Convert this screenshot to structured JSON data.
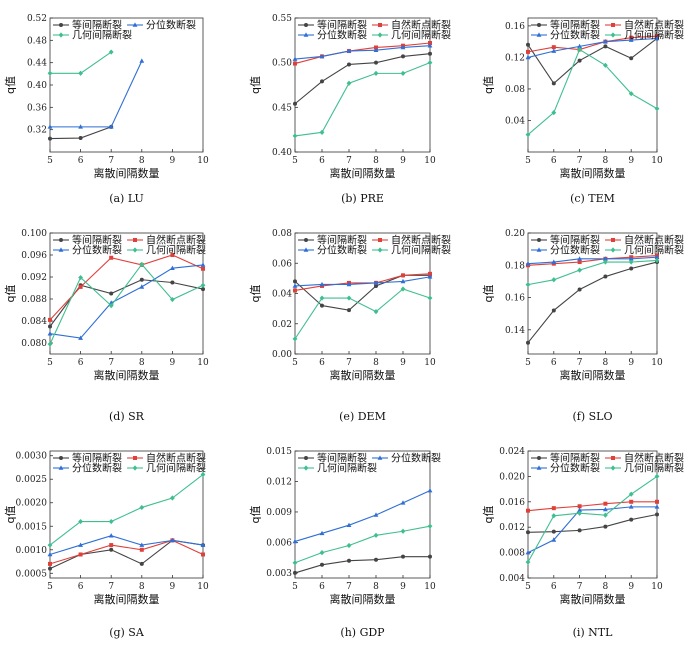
{
  "figure": {
    "colors": {
      "equal_interval": "#444444",
      "natural_breaks": "#e0403a",
      "quantile": "#2f6fd6",
      "geometric_interval": "#3fbf8f"
    }
  },
  "chart_data": [
    {
      "type": "line",
      "caption": "(a) LU",
      "xlabel": "离散间隔数量",
      "ylabel": "q值",
      "xlim": [
        5,
        10
      ],
      "ylim": [
        0.28,
        0.52
      ],
      "xticks": [
        "5",
        "6",
        "7",
        "8",
        "9",
        "10"
      ],
      "yticks": [
        "0.32",
        "0.36",
        "0.40",
        "0.44",
        "0.48",
        "0.52"
      ],
      "legend": [
        {
          "name": "等间隔断裂",
          "series": 0,
          "col": 0,
          "row": 0
        },
        {
          "name": "分位数断裂",
          "series": 2,
          "col": 1,
          "row": 0
        },
        {
          "name": "几何间隔断裂",
          "series": 3,
          "col": 0,
          "row": 1
        }
      ],
      "series": [
        {
          "name": "等间隔断裂",
          "x": [
            5,
            6,
            7
          ],
          "y": [
            0.304,
            0.305,
            0.325
          ]
        },
        {
          "name": "分位数断裂",
          "x": [
            5,
            6,
            7,
            8
          ],
          "y": [
            0.325,
            0.325,
            0.325,
            0.443
          ]
        },
        {
          "name": "几何间隔断裂",
          "x": [
            5,
            6,
            7
          ],
          "y": [
            0.421,
            0.421,
            0.459
          ]
        }
      ]
    },
    {
      "type": "line",
      "caption": "(b) PRE",
      "xlabel": "离散间隔数量",
      "ylabel": "q值",
      "xlim": [
        5,
        10
      ],
      "ylim": [
        0.4,
        0.55
      ],
      "xticks": [
        "5",
        "6",
        "7",
        "8",
        "9",
        "10"
      ],
      "yticks": [
        "0.40",
        "0.45",
        "0.50",
        "0.55"
      ],
      "legend": [
        {
          "name": "等间隔断裂",
          "series": 0,
          "col": 0,
          "row": 0
        },
        {
          "name": "自然断点断裂",
          "series": 1,
          "col": 1,
          "row": 0
        },
        {
          "name": "分位数断裂",
          "series": 2,
          "col": 0,
          "row": 1
        },
        {
          "name": "几何间隔断裂",
          "series": 3,
          "col": 1,
          "row": 1
        }
      ],
      "series": [
        {
          "name": "等间隔断裂",
          "x": [
            5,
            6,
            7,
            8,
            9,
            10
          ],
          "y": [
            0.454,
            0.479,
            0.498,
            0.5,
            0.507,
            0.51
          ]
        },
        {
          "name": "自然断点断裂",
          "x": [
            5,
            6,
            7,
            8,
            9,
            10
          ],
          "y": [
            0.499,
            0.507,
            0.513,
            0.517,
            0.519,
            0.522
          ]
        },
        {
          "name": "分位数断裂",
          "x": [
            5,
            6,
            7,
            8,
            9,
            10
          ],
          "y": [
            0.504,
            0.507,
            0.513,
            0.514,
            0.517,
            0.519
          ]
        },
        {
          "name": "几何间隔断裂",
          "x": [
            5,
            6,
            7,
            8,
            9,
            10
          ],
          "y": [
            0.418,
            0.422,
            0.477,
            0.488,
            0.488,
            0.5
          ]
        }
      ]
    },
    {
      "type": "line",
      "caption": "(c) TEM",
      "xlabel": "离散间隔数量",
      "ylabel": "q值",
      "xlim": [
        5,
        10
      ],
      "ylim": [
        0.0,
        0.17
      ],
      "xticks": [
        "5",
        "6",
        "7",
        "8",
        "9",
        "10"
      ],
      "yticks": [
        "0.04",
        "0.08",
        "0.12",
        "0.16"
      ],
      "legend": [
        {
          "name": "等间隔断裂",
          "series": 0,
          "col": 0,
          "row": 0
        },
        {
          "name": "自然断点断裂",
          "series": 1,
          "col": 1,
          "row": 0
        },
        {
          "name": "分位数断裂",
          "series": 2,
          "col": 0,
          "row": 1
        },
        {
          "name": "几何间隔断裂",
          "series": 3,
          "col": 1,
          "row": 1
        }
      ],
      "series": [
        {
          "name": "等间隔断裂",
          "x": [
            5,
            6,
            7,
            8,
            9,
            10
          ],
          "y": [
            0.136,
            0.087,
            0.116,
            0.134,
            0.119,
            0.144
          ]
        },
        {
          "name": "自然断点断裂",
          "x": [
            5,
            6,
            7,
            8,
            9,
            10
          ],
          "y": [
            0.127,
            0.133,
            0.13,
            0.14,
            0.145,
            0.147
          ]
        },
        {
          "name": "分位数断裂",
          "x": [
            5,
            6,
            7,
            8,
            9,
            10
          ],
          "y": [
            0.12,
            0.128,
            0.134,
            0.14,
            0.142,
            0.144
          ]
        },
        {
          "name": "几何间隔断裂",
          "x": [
            5,
            6,
            7,
            8,
            9,
            10
          ],
          "y": [
            0.022,
            0.05,
            0.13,
            0.11,
            0.074,
            0.055
          ]
        }
      ]
    },
    {
      "type": "line",
      "caption": "(d) SR",
      "xlabel": "离散间隔数量",
      "ylabel": "q值",
      "xlim": [
        5,
        10
      ],
      "ylim": [
        0.078,
        0.1
      ],
      "xticks": [
        "5",
        "6",
        "7",
        "8",
        "9",
        "10"
      ],
      "yticks": [
        "0.080",
        "0.084",
        "0.088",
        "0.092",
        "0.096",
        "0.100"
      ],
      "legend": [
        {
          "name": "等间隔断裂",
          "series": 0,
          "col": 0,
          "row": 0
        },
        {
          "name": "自然断点断裂",
          "series": 1,
          "col": 1,
          "row": 0
        },
        {
          "name": "分位数断裂",
          "series": 2,
          "col": 0,
          "row": 1
        },
        {
          "name": "几何间隔断裂",
          "series": 3,
          "col": 1,
          "row": 1
        }
      ],
      "series": [
        {
          "name": "等间隔断裂",
          "x": [
            5,
            6,
            7,
            8,
            9,
            10
          ],
          "y": [
            0.083,
            0.0905,
            0.089,
            0.0915,
            0.091,
            0.0898
          ]
        },
        {
          "name": "自然断点断裂",
          "x": [
            5,
            6,
            7,
            8,
            9,
            10
          ],
          "y": [
            0.0842,
            0.0902,
            0.0955,
            0.0942,
            0.096,
            0.0935
          ]
        },
        {
          "name": "分位数断裂",
          "x": [
            5,
            6,
            7,
            8,
            9,
            10
          ],
          "y": [
            0.0817,
            0.0809,
            0.0873,
            0.0902,
            0.0936,
            0.0942
          ]
        },
        {
          "name": "几何间隔断裂",
          "x": [
            5,
            6,
            7,
            8,
            9,
            10
          ],
          "y": [
            0.0798,
            0.0919,
            0.0868,
            0.0943,
            0.0879,
            0.0905
          ]
        }
      ]
    },
    {
      "type": "line",
      "caption": "(e) DEM",
      "xlabel": "离散间隔数量",
      "ylabel": "q值",
      "xlim": [
        5,
        10
      ],
      "ylim": [
        0.0,
        0.08
      ],
      "xticks": [
        "5",
        "6",
        "7",
        "8",
        "9",
        "10"
      ],
      "yticks": [
        "0.00",
        "0.02",
        "0.04",
        "0.06",
        "0.08"
      ],
      "legend": [
        {
          "name": "等间隔断裂",
          "series": 0,
          "col": 0,
          "row": 0
        },
        {
          "name": "自然断点断裂",
          "series": 1,
          "col": 1,
          "row": 0
        },
        {
          "name": "分位数断裂",
          "series": 2,
          "col": 0,
          "row": 1
        },
        {
          "name": "几何间隔断裂",
          "series": 3,
          "col": 1,
          "row": 1
        }
      ],
      "series": [
        {
          "name": "等间隔断裂",
          "x": [
            5,
            6,
            7,
            8,
            9,
            10
          ],
          "y": [
            0.048,
            0.032,
            0.029,
            0.045,
            0.052,
            0.052
          ]
        },
        {
          "name": "自然断点断裂",
          "x": [
            5,
            6,
            7,
            8,
            9,
            10
          ],
          "y": [
            0.042,
            0.045,
            0.047,
            0.047,
            0.052,
            0.053
          ]
        },
        {
          "name": "分位数断裂",
          "x": [
            5,
            6,
            7,
            8,
            9,
            10
          ],
          "y": [
            0.045,
            0.046,
            0.046,
            0.047,
            0.048,
            0.051
          ]
        },
        {
          "name": "几何间隔断裂",
          "x": [
            5,
            6,
            7,
            8,
            9,
            10
          ],
          "y": [
            0.01,
            0.037,
            0.037,
            0.028,
            0.043,
            0.037
          ]
        }
      ]
    },
    {
      "type": "line",
      "caption": "(f) SLO",
      "xlabel": "离散间隔数量",
      "ylabel": "q值",
      "xlim": [
        5,
        10
      ],
      "ylim": [
        0.125,
        0.2
      ],
      "xticks": [
        "5",
        "6",
        "7",
        "8",
        "9",
        "10"
      ],
      "yticks": [
        "0.14",
        "0.16",
        "0.18",
        "0.20"
      ],
      "legend": [
        {
          "name": "等间隔断裂",
          "series": 0,
          "col": 0,
          "row": 0
        },
        {
          "name": "自然断点断裂",
          "series": 1,
          "col": 1,
          "row": 0
        },
        {
          "name": "分位数断裂",
          "series": 2,
          "col": 0,
          "row": 1
        },
        {
          "name": "几何间隔断裂",
          "series": 3,
          "col": 1,
          "row": 1
        }
      ],
      "series": [
        {
          "name": "等间隔断裂",
          "x": [
            5,
            6,
            7,
            8,
            9,
            10
          ],
          "y": [
            0.132,
            0.152,
            0.165,
            0.173,
            0.178,
            0.182
          ]
        },
        {
          "name": "自然断点断裂",
          "x": [
            5,
            6,
            7,
            8,
            9,
            10
          ],
          "y": [
            0.18,
            0.181,
            0.182,
            0.184,
            0.185,
            0.186
          ]
        },
        {
          "name": "分位数断裂",
          "x": [
            5,
            6,
            7,
            8,
            9,
            10
          ],
          "y": [
            0.181,
            0.182,
            0.184,
            0.184,
            0.184,
            0.185
          ]
        },
        {
          "name": "几何间隔断裂",
          "x": [
            5,
            6,
            7,
            8,
            9,
            10
          ],
          "y": [
            0.168,
            0.171,
            0.177,
            0.182,
            0.182,
            0.183
          ]
        }
      ]
    },
    {
      "type": "line",
      "caption": "(g) SA",
      "xlabel": "离散间隔数量",
      "ylabel": "q值",
      "xlim": [
        5,
        10
      ],
      "ylim": [
        0.0004,
        0.0031
      ],
      "xticks": [
        "5",
        "6",
        "7",
        "8",
        "9",
        "10"
      ],
      "yticks": [
        "0.0005",
        "0.0010",
        "0.0015",
        "0.0020",
        "0.0025",
        "0.0030"
      ],
      "legend": [
        {
          "name": "等间隔断裂",
          "series": 0,
          "col": 0,
          "row": 0
        },
        {
          "name": "自然断点断裂",
          "series": 1,
          "col": 1,
          "row": 0
        },
        {
          "name": "分位数断裂",
          "series": 2,
          "col": 0,
          "row": 1
        },
        {
          "name": "几何间隔断裂",
          "series": 3,
          "col": 1,
          "row": 1
        }
      ],
      "series": [
        {
          "name": "等间隔断裂",
          "x": [
            5,
            6,
            7,
            8,
            9,
            10
          ],
          "y": [
            0.0006,
            0.0009,
            0.001,
            0.0007,
            0.0012,
            0.0011
          ]
        },
        {
          "name": "自然断点断裂",
          "x": [
            5,
            6,
            7,
            8,
            9,
            10
          ],
          "y": [
            0.0007,
            0.0009,
            0.0011,
            0.001,
            0.0012,
            0.0009
          ]
        },
        {
          "name": "分位数断裂",
          "x": [
            5,
            6,
            7,
            8,
            9,
            10
          ],
          "y": [
            0.0009,
            0.0011,
            0.0013,
            0.0011,
            0.0012,
            0.0011
          ]
        },
        {
          "name": "几何间隔断裂",
          "x": [
            5,
            6,
            7,
            8,
            9,
            10
          ],
          "y": [
            0.0011,
            0.0016,
            0.0016,
            0.0019,
            0.0021,
            0.0026
          ]
        }
      ]
    },
    {
      "type": "line",
      "caption": "(h) GDP",
      "xlabel": "离散间隔数量",
      "ylabel": "q值",
      "xlim": [
        5,
        10
      ],
      "ylim": [
        0.0025,
        0.015
      ],
      "xticks": [
        "5",
        "6",
        "7",
        "8",
        "9",
        "10"
      ],
      "yticks": [
        "0.003",
        "0.006",
        "0.009",
        "0.012",
        "0.015"
      ],
      "legend": [
        {
          "name": "等间隔断裂",
          "series": 0,
          "col": 0,
          "row": 0
        },
        {
          "name": "分位数断裂",
          "series": 2,
          "col": 1,
          "row": 0
        },
        {
          "name": "几何间隔断裂",
          "series": 3,
          "col": 0,
          "row": 1
        }
      ],
      "series": [
        {
          "name": "等间隔断裂",
          "x": [
            5,
            6,
            7,
            8,
            9,
            10
          ],
          "y": [
            0.003,
            0.0038,
            0.0042,
            0.0043,
            0.0046,
            0.0046
          ]
        },
        {
          "name": "分位数断裂",
          "x": [
            5,
            6,
            7,
            8,
            9,
            10
          ],
          "y": [
            0.0061,
            0.0069,
            0.0077,
            0.0087,
            0.0099,
            0.0111
          ]
        },
        {
          "name": "几何间隔断裂",
          "x": [
            5,
            6,
            7,
            8,
            9,
            10
          ],
          "y": [
            0.004,
            0.005,
            0.0057,
            0.0067,
            0.0071,
            0.0076
          ]
        }
      ]
    },
    {
      "type": "line",
      "caption": "(i) NTL",
      "xlabel": "离散间隔数量",
      "ylabel": "q值",
      "xlim": [
        5,
        10
      ],
      "ylim": [
        0.004,
        0.024
      ],
      "xticks": [
        "5",
        "6",
        "7",
        "8",
        "9",
        "10"
      ],
      "yticks": [
        "0.004",
        "0.008",
        "0.012",
        "0.016",
        "0.020",
        "0.024"
      ],
      "legend": [
        {
          "name": "等间隔断裂",
          "series": 0,
          "col": 0,
          "row": 0
        },
        {
          "name": "自然断点断裂",
          "series": 1,
          "col": 1,
          "row": 0
        },
        {
          "name": "分位数断裂",
          "series": 2,
          "col": 0,
          "row": 1
        },
        {
          "name": "几何间隔断裂",
          "series": 3,
          "col": 1,
          "row": 1
        }
      ],
      "series": [
        {
          "name": "等间隔断裂",
          "x": [
            5,
            6,
            7,
            8,
            9,
            10
          ],
          "y": [
            0.0112,
            0.0113,
            0.0115,
            0.0121,
            0.0132,
            0.014
          ]
        },
        {
          "name": "自然断点断裂",
          "x": [
            5,
            6,
            7,
            8,
            9,
            10
          ],
          "y": [
            0.0146,
            0.015,
            0.0153,
            0.0157,
            0.016,
            0.016
          ]
        },
        {
          "name": "分位数断裂",
          "x": [
            5,
            6,
            7,
            8,
            9,
            10
          ],
          "y": [
            0.008,
            0.01,
            0.0147,
            0.0148,
            0.0152,
            0.0152
          ]
        },
        {
          "name": "几何间隔断裂",
          "x": [
            5,
            6,
            7,
            8,
            9,
            10
          ],
          "y": [
            0.0065,
            0.0138,
            0.0142,
            0.0139,
            0.0172,
            0.02
          ]
        }
      ]
    }
  ]
}
